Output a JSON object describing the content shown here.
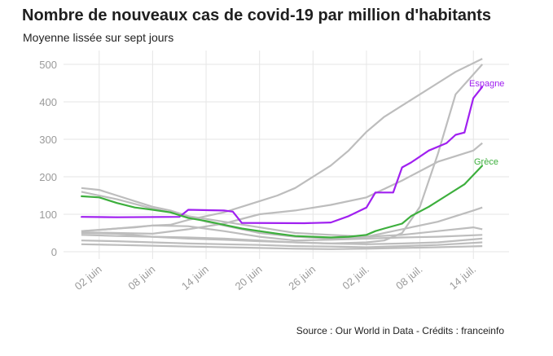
{
  "chart_data": {
    "type": "line",
    "title": "Nombre de nouveaux cas de covid-19 par million d'habitants",
    "subtitle": "Moyenne lissée sur sept jours",
    "source": "Source : Our World in Data - Crédits : franceinfo",
    "x_ticks": [
      "02 juin",
      "08 juin",
      "14 juin",
      "20 juin",
      "26 juin",
      "02 juil.",
      "08 juil.",
      "14 juil."
    ],
    "x_tick_days": [
      0,
      6,
      12,
      18,
      24,
      30,
      36,
      42
    ],
    "y_ticks": [
      0,
      100,
      200,
      300,
      400,
      500
    ],
    "ylim": [
      0,
      500
    ],
    "grid": true,
    "colors": {
      "espagne": "#a020f0",
      "grece": "#3daf3d",
      "other": "#bdbdbd",
      "grid": "#e6e6e6"
    },
    "highlighted": [
      {
        "name": "Espagne",
        "x": [
          -2,
          2,
          9,
          10,
          14,
          15,
          16,
          23,
          26,
          28,
          30,
          31,
          33,
          34,
          35,
          37,
          39,
          40,
          41,
          42,
          43
        ],
        "y": [
          93,
          92,
          93,
          112,
          110,
          107,
          77,
          76,
          78,
          95,
          118,
          158,
          158,
          225,
          238,
          270,
          290,
          312,
          318,
          410,
          440
        ]
      },
      {
        "name": "Grèce",
        "x": [
          -2,
          0,
          2,
          4,
          6,
          8,
          10,
          12,
          14,
          16,
          18,
          20,
          22,
          24,
          26,
          28,
          30,
          31,
          32,
          34,
          35,
          37,
          39,
          41,
          43
        ],
        "y": [
          148,
          145,
          130,
          118,
          112,
          105,
          90,
          82,
          72,
          62,
          55,
          48,
          42,
          40,
          38,
          40,
          45,
          55,
          62,
          75,
          95,
          120,
          150,
          180,
          230
        ]
      }
    ],
    "other_series": [
      {
        "x": [
          -2,
          0,
          2,
          4,
          6,
          8,
          10,
          12,
          14,
          16,
          18,
          20,
          22,
          24,
          26,
          28,
          30,
          32,
          34,
          36,
          38,
          40,
          43
        ],
        "y": [
          55,
          58,
          62,
          65,
          70,
          72,
          85,
          95,
          105,
          120,
          135,
          150,
          170,
          200,
          230,
          270,
          320,
          360,
          390,
          420,
          450,
          480,
          515
        ]
      },
      {
        "x": [
          -2,
          2,
          6,
          10,
          14,
          18,
          22,
          26,
          30,
          34,
          38,
          42,
          43
        ],
        "y": [
          52,
          50,
          48,
          60,
          75,
          100,
          110,
          125,
          145,
          190,
          240,
          270,
          290
        ]
      },
      {
        "x": [
          -2,
          2,
          6,
          10,
          14,
          18,
          22,
          26,
          30,
          32,
          34,
          36,
          38,
          40,
          43
        ],
        "y": [
          50,
          48,
          40,
          35,
          32,
          28,
          25,
          22,
          25,
          30,
          50,
          120,
          260,
          420,
          500
        ]
      },
      {
        "x": [
          -2,
          0,
          2,
          4,
          6,
          8,
          10,
          12,
          14,
          16,
          18,
          20,
          22,
          26,
          30,
          34,
          38,
          42,
          43
        ],
        "y": [
          170,
          165,
          150,
          135,
          120,
          110,
          95,
          80,
          70,
          60,
          50,
          45,
          40,
          35,
          40,
          60,
          80,
          110,
          118
        ]
      },
      {
        "x": [
          -2,
          2,
          6,
          10,
          14,
          18,
          22,
          26,
          30,
          34,
          38,
          42,
          43
        ],
        "y": [
          160,
          140,
          115,
          95,
          80,
          65,
          50,
          45,
          40,
          45,
          55,
          65,
          60
        ]
      },
      {
        "x": [
          -2,
          2,
          6,
          10,
          14,
          18,
          22,
          26,
          30,
          34,
          38,
          43
        ],
        "y": [
          55,
          62,
          70,
          68,
          55,
          40,
          30,
          32,
          35,
          38,
          40,
          45
        ]
      },
      {
        "x": [
          -2,
          2,
          6,
          10,
          14,
          18,
          22,
          26,
          30,
          34,
          38,
          43
        ],
        "y": [
          45,
          42,
          40,
          38,
          35,
          30,
          25,
          22,
          20,
          22,
          25,
          35
        ]
      },
      {
        "x": [
          -2,
          2,
          6,
          10,
          14,
          18,
          22,
          26,
          30,
          34,
          38,
          43
        ],
        "y": [
          30,
          28,
          25,
          22,
          20,
          18,
          15,
          14,
          12,
          15,
          18,
          25
        ]
      },
      {
        "x": [
          -2,
          2,
          6,
          10,
          14,
          18,
          22,
          26,
          30,
          34,
          38,
          43
        ],
        "y": [
          20,
          18,
          16,
          14,
          12,
          10,
          8,
          7,
          8,
          10,
          12,
          15
        ]
      }
    ]
  }
}
